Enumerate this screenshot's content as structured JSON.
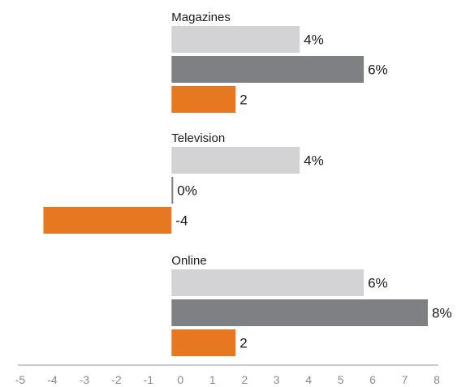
{
  "chart_data": {
    "type": "bar",
    "orientation": "horizontal",
    "categories": [
      "Magazines",
      "Television",
      "Online"
    ],
    "series": [
      {
        "values": [
          4,
          4,
          6
        ],
        "labels": [
          "4%",
          "4%",
          "6%"
        ],
        "color": "#d3d3d5"
      },
      {
        "values": [
          6,
          0,
          8
        ],
        "labels": [
          "6%",
          "0%",
          "8%"
        ],
        "color": "#7f8083"
      },
      {
        "values": [
          2,
          -4,
          2
        ],
        "labels": [
          "2",
          "-4",
          "2"
        ],
        "color": "#e87722"
      }
    ],
    "x_ticks": [
      "-5",
      "-4",
      "-3",
      "-2",
      "-1",
      "0",
      "1",
      "2",
      "3",
      "4",
      "5",
      "6",
      "7",
      "8"
    ],
    "xlim": [
      -5,
      8
    ],
    "grid": false,
    "legend": "none"
  }
}
